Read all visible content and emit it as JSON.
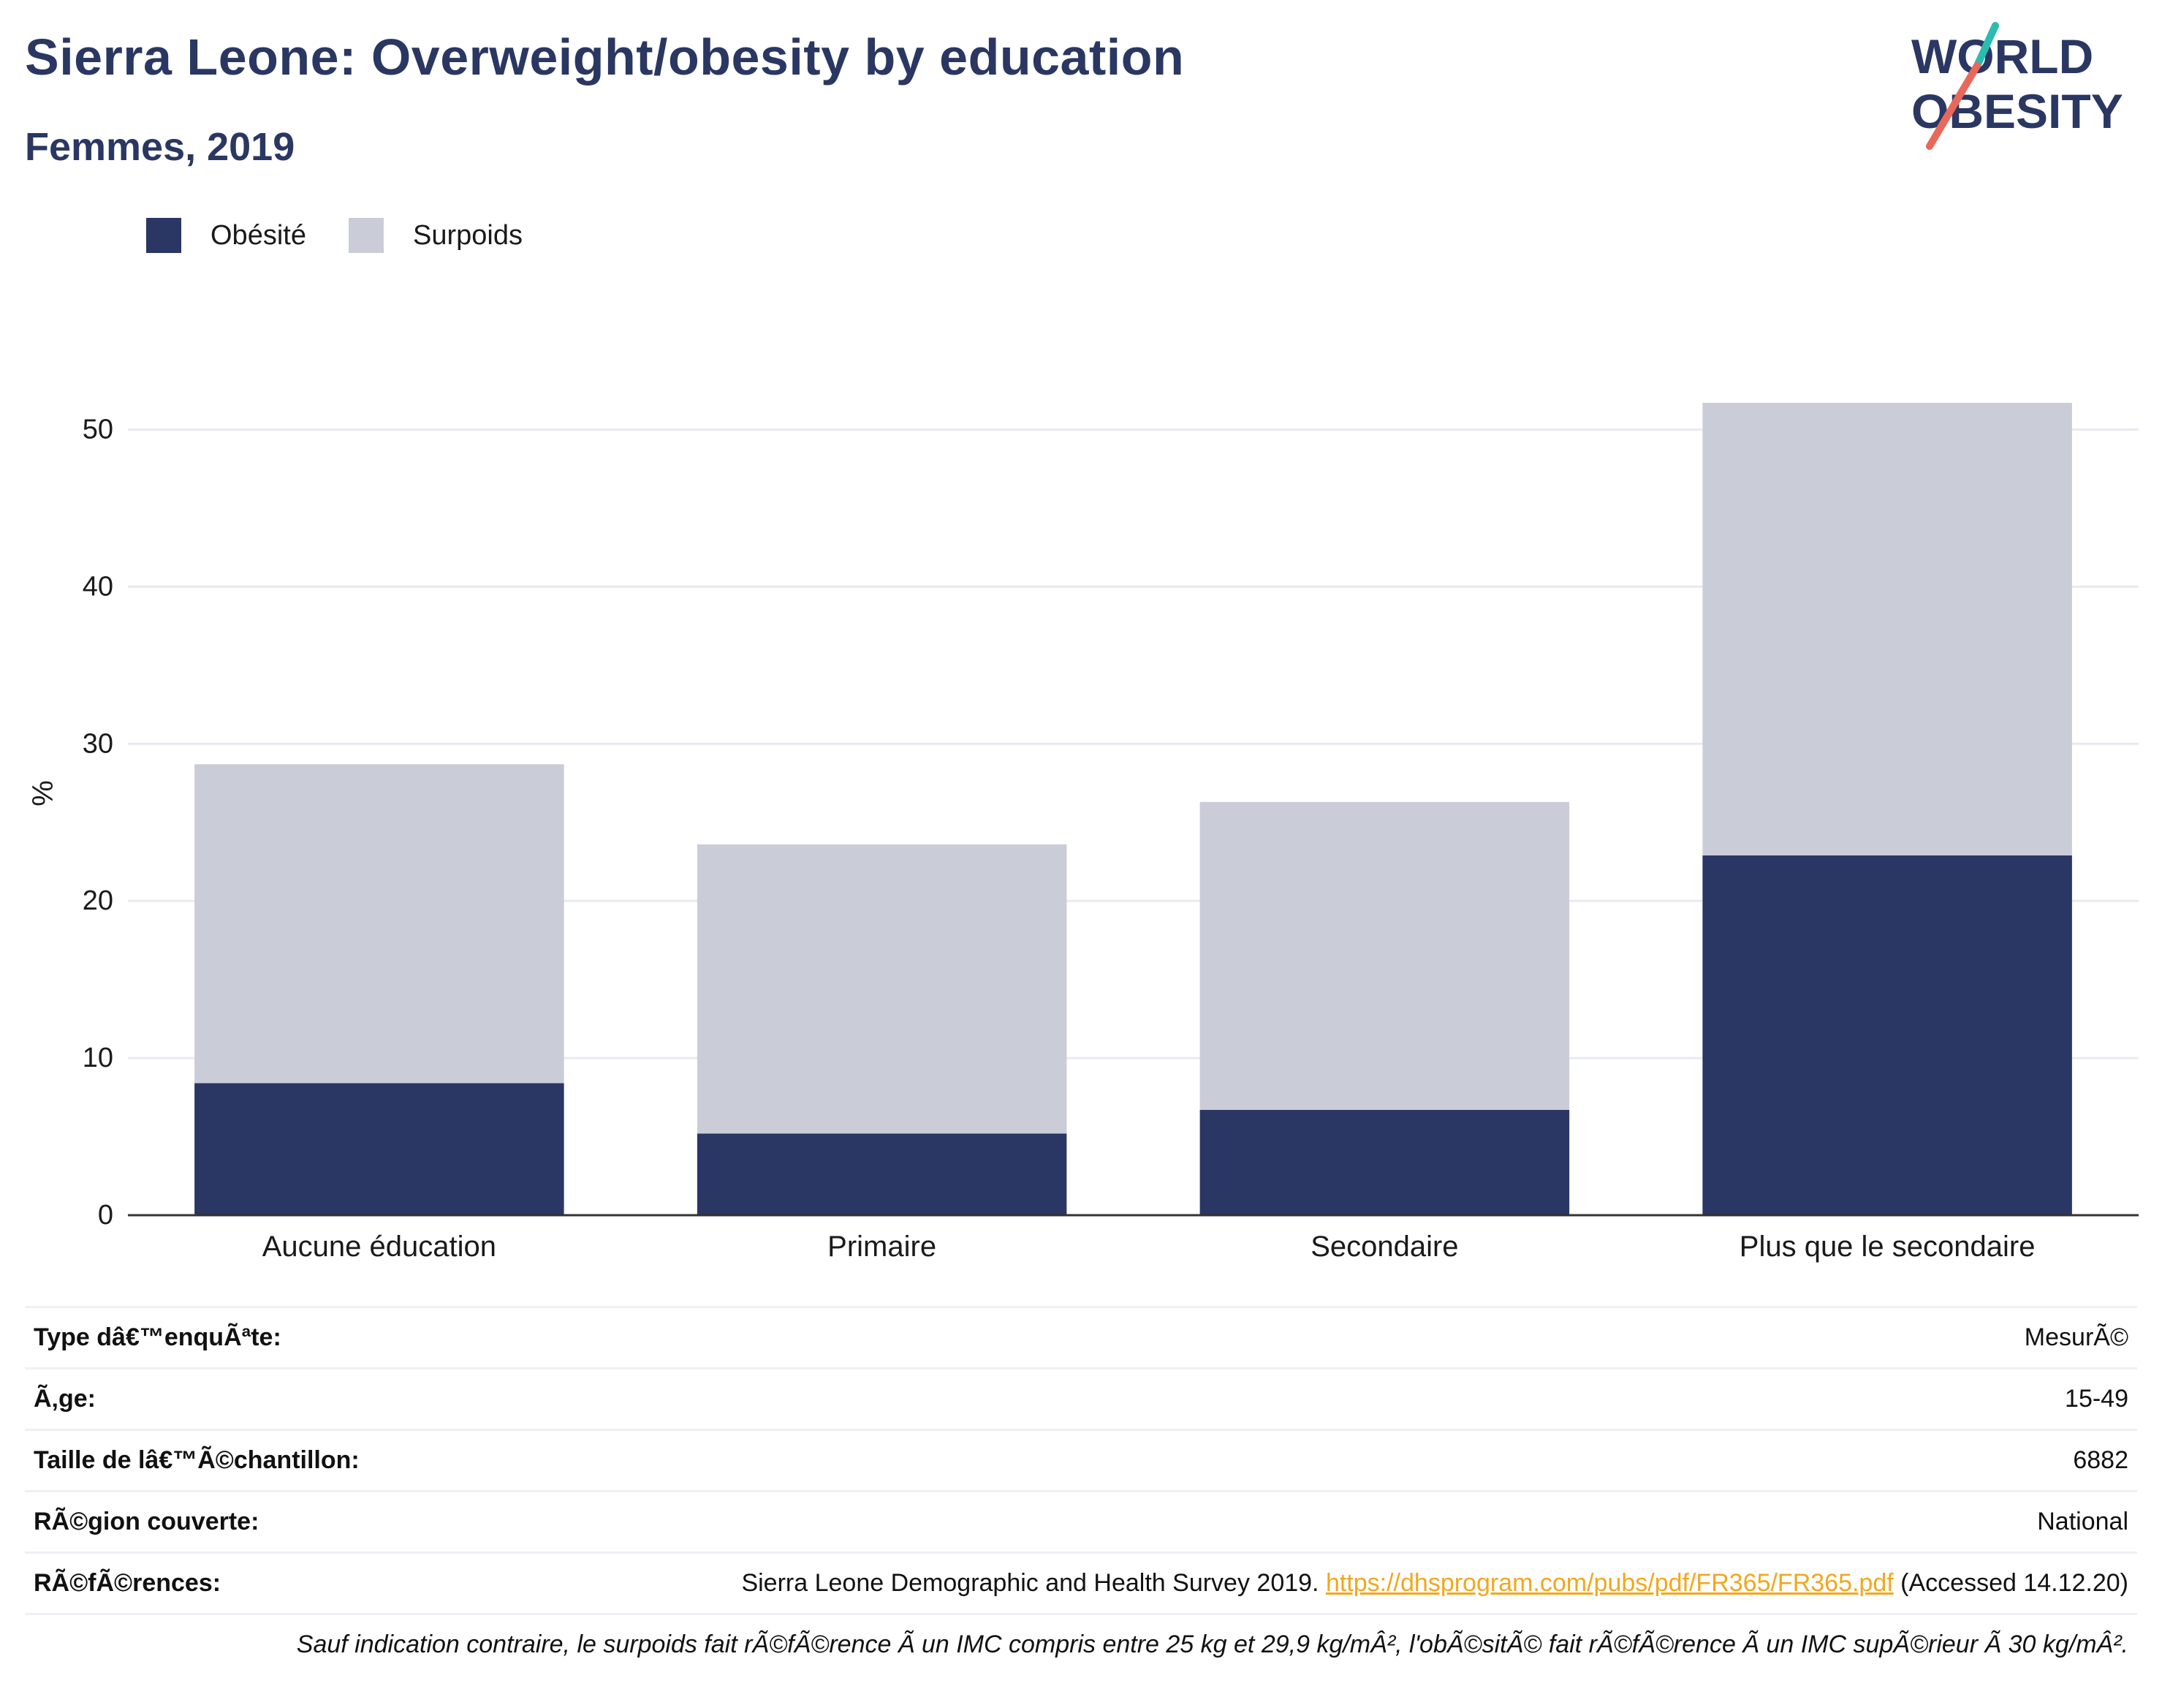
{
  "header": {
    "title": "Sierra Leone: Overweight/obesity by education",
    "subtitle": "Femmes, 2019",
    "logo_line1": "WORLD",
    "logo_line2": "OBESITY"
  },
  "colors": {
    "obesity": "#2a3663",
    "overweight": "#cacdd8",
    "title": "#2a3762",
    "link": "#f0a81e",
    "logo_teal": "#2bbcb0",
    "logo_red": "#e8685a"
  },
  "legend": [
    {
      "label": "Obésité",
      "color": "#2a3663"
    },
    {
      "label": "Surpoids",
      "color": "#cacdd8"
    }
  ],
  "chart_data": {
    "type": "bar",
    "stacked": true,
    "categories": [
      "Aucune éducation",
      "Primaire",
      "Secondaire",
      "Plus que le secondaire"
    ],
    "series": [
      {
        "name": "Obésité",
        "values": [
          8.4,
          5.2,
          6.7,
          22.9
        ]
      },
      {
        "name": "Surpoids",
        "values": [
          20.3,
          18.4,
          19.6,
          28.8
        ]
      }
    ],
    "ylabel": "%",
    "ylim": [
      0,
      55
    ],
    "yticks": [
      0,
      10,
      20,
      30,
      40,
      50
    ],
    "grid": true,
    "legend_position": "top-left"
  },
  "info": {
    "survey_type_label": "Type dâ€™enquÃªte:",
    "survey_type_value": "MesurÃ©",
    "age_label": "Ã‚ge:",
    "age_value": "15-49",
    "sample_label": "Taille de lâ€™Ã©chantillon:",
    "sample_value": "6882",
    "region_label": "RÃ©gion couverte:",
    "region_value": "National",
    "refs_label": "RÃ©fÃ©rences:",
    "refs_text": "Sierra Leone Demographic and Health Survey 2019.",
    "refs_link": "https://dhsprogram.com/pubs/pdf/FR365/FR365.pdf",
    "refs_accessed": "(Accessed 14.12.20)",
    "note": "Sauf indication contraire, le surpoids fait rÃ©fÃ©rence Ã  un IMC compris entre 25 kg et 29,9 kg/mÂ², l'obÃ©sitÃ© fait rÃ©fÃ©rence Ã  un IMC supÃ©rieur Ã  30 kg/mÂ²."
  }
}
